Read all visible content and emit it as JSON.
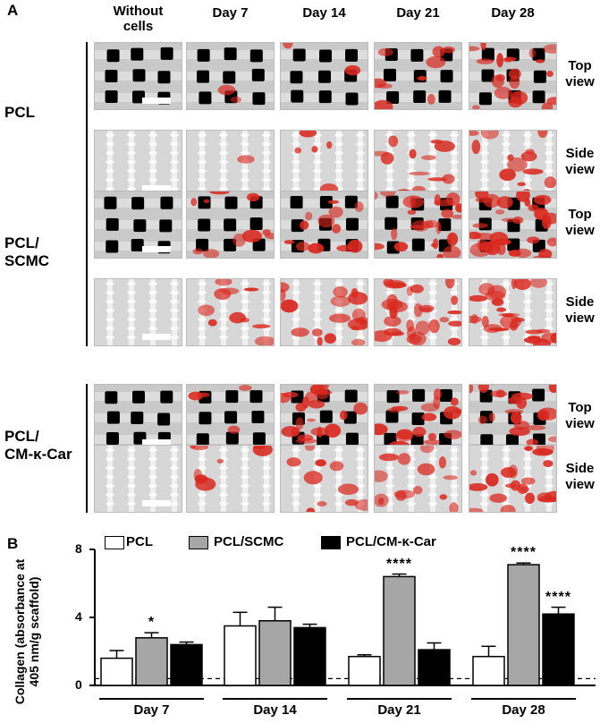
{
  "figure": {
    "panel_a_label": "A",
    "panel_b_label": "B",
    "columns": [
      "Without cells",
      "Day 7",
      "Day 14",
      "Day 21",
      "Day 28"
    ],
    "rows": [
      {
        "label": "PCL"
      },
      {
        "label": "PCL/ SCMC"
      },
      {
        "label": "PCL/ CM-κ-Car"
      }
    ],
    "views": {
      "top": "Top view",
      "side": "Side view"
    },
    "stain_intensity": {
      "PCL": {
        "top": [
          0,
          0.05,
          0.05,
          0.25,
          0.5
        ],
        "side": [
          0,
          0.02,
          0.12,
          0.3,
          0.35
        ]
      },
      "PCL/ SCMC": {
        "top": [
          0,
          0.25,
          0.3,
          0.6,
          0.75
        ],
        "side": [
          0,
          0.25,
          0.45,
          0.7,
          0.65
        ]
      },
      "PCL/ CM-κ-Car": {
        "top": [
          0,
          0.1,
          0.55,
          0.45,
          0.5
        ],
        "side": [
          0,
          0.2,
          0.25,
          0.35,
          0.55
        ]
      }
    },
    "colors": {
      "stain": "#d9281e",
      "scaffold": "#d2d2d2",
      "pore": "#000000"
    }
  },
  "chart_data": {
    "type": "bar",
    "categories": [
      "Day 7",
      "Day 14",
      "Day 21",
      "Day 28"
    ],
    "ylabel": "Collagen (absorbance at 405 nm/g scaffold)",
    "ylim": [
      0,
      8
    ],
    "yticks": [
      0,
      4,
      8
    ],
    "baseline_dashed": 0.4,
    "legend_placement": "top",
    "series": [
      {
        "name": "PCL",
        "color": "#ffffff",
        "values": [
          1.6,
          3.5,
          1.7,
          1.7
        ],
        "errors": [
          0.45,
          0.8,
          0.1,
          0.6
        ],
        "significance": [
          "",
          "",
          "",
          ""
        ]
      },
      {
        "name": "PCL/SCMC",
        "color": "#a6a6a6",
        "values": [
          2.8,
          3.8,
          6.4,
          7.1
        ],
        "errors": [
          0.3,
          0.8,
          0.15,
          0.1
        ],
        "significance": [
          "*",
          "",
          "****",
          "****"
        ]
      },
      {
        "name": "PCL/CM-κ-Car",
        "color": "#000000",
        "values": [
          2.4,
          3.4,
          2.1,
          4.2
        ],
        "errors": [
          0.15,
          0.2,
          0.4,
          0.4
        ],
        "significance": [
          "",
          "",
          "",
          "****"
        ]
      }
    ]
  }
}
